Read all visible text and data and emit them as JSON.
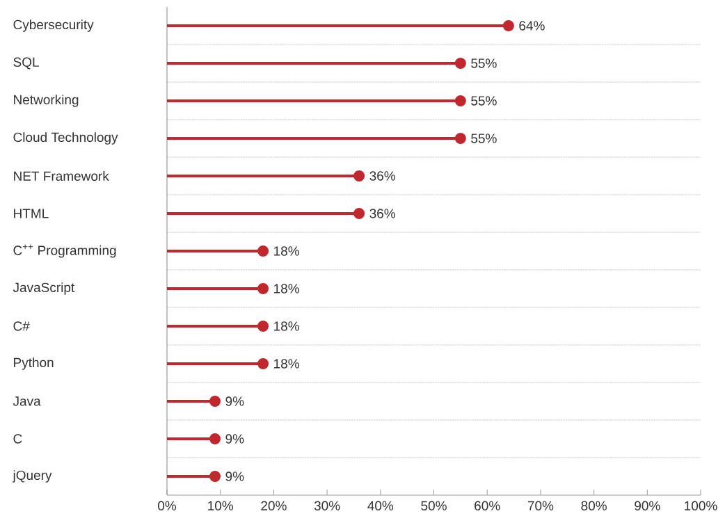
{
  "chart_data": {
    "type": "lollipop",
    "orientation": "horizontal",
    "color": "#c1272d",
    "marker": "circle",
    "grid": "y",
    "categories": [
      "Cybersecurity",
      "SQL",
      "Networking",
      "Cloud Technology",
      "NET Framework",
      "HTML",
      "C$^{++}$ Programming",
      "JavaScript",
      "C#",
      "Python",
      "Java",
      "C",
      "jQuery"
    ],
    "values": [
      64,
      55,
      55,
      55,
      36,
      36,
      18,
      18,
      18,
      18,
      9,
      9,
      9
    ],
    "value_labels": [
      "64%",
      "55%",
      "55%",
      "55%",
      "36%",
      "36%",
      "18%",
      "18%",
      "18%",
      "18%",
      "9%",
      "9%",
      "9%"
    ],
    "xlim": [
      0,
      100
    ],
    "xticks": [
      {
        "value": 0,
        "label": "0%"
      },
      {
        "value": 10,
        "label": "10%"
      },
      {
        "value": 20,
        "label": "20%"
      },
      {
        "value": 30,
        "label": "30%"
      },
      {
        "value": 40,
        "label": "40%"
      },
      {
        "value": 50,
        "label": "50%"
      },
      {
        "value": 60,
        "label": "60%"
      },
      {
        "value": 70,
        "label": "70%"
      },
      {
        "value": 80,
        "label": "80%"
      },
      {
        "value": 90,
        "label": "90%"
      },
      {
        "value": 100,
        "label": "100%"
      }
    ]
  }
}
